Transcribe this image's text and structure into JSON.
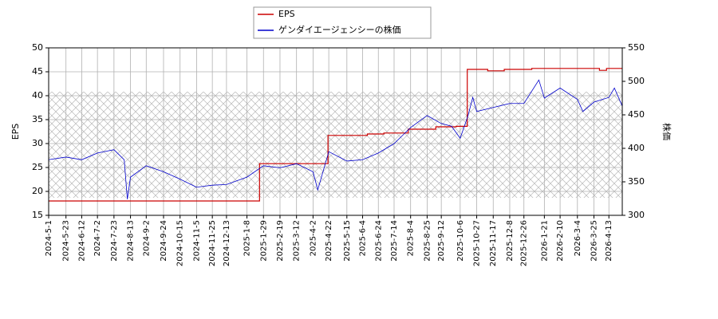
{
  "chart_data": {
    "type": "line",
    "drawstyle": {
      "EPS": "steps-post"
    },
    "ylabel": "EPS",
    "y2label": "株価",
    "xlim": [
      "2024-5-1",
      "2026-4-30"
    ],
    "xticks": [
      "2024-5-1",
      "2024-5-23",
      "2024-6-12",
      "2024-7-2",
      "2024-7-23",
      "2024-8-13",
      "2024-9-2",
      "2024-9-24",
      "2024-10-15",
      "2024-11-5",
      "2024-11-25",
      "2024-12-13",
      "2025-1-8",
      "2025-1-29",
      "2025-2-19",
      "2025-3-12",
      "2025-4-2",
      "2025-4-22",
      "2025-5-15",
      "2025-6-4",
      "2025-6-24",
      "2025-7-14",
      "2025-8-4",
      "2025-8-25",
      "2025-9-12",
      "2025-10-6",
      "2025-10-27",
      "2025-11-17",
      "2025-12-8",
      "2025-12-26",
      "2026-1-21",
      "2026-2-10",
      "2026-3-4",
      "2026-3-25",
      "2026-4-13"
    ],
    "ylim": [
      15,
      50
    ],
    "yticks": [
      15,
      20,
      25,
      30,
      35,
      40,
      45,
      50
    ],
    "y2lim": [
      300,
      550
    ],
    "y2ticks": [
      300,
      350,
      400,
      450,
      500,
      550
    ],
    "grid": true,
    "legend": "upper center",
    "series": [
      {
        "name": "EPS",
        "color": "#cc0000",
        "x": [
          "2024-5-1",
          "2025-1-24",
          "2025-4-21",
          "2025-6-10",
          "2025-7-1",
          "2025-8-1",
          "2025-9-5",
          "2025-10-1",
          "2025-10-15",
          "2025-11-10",
          "2025-12-1",
          "2026-1-5",
          "2026-4-1",
          "2026-4-10",
          "2026-4-30"
        ],
        "values": [
          18.0,
          25.8,
          31.7,
          32.0,
          32.2,
          33.0,
          33.5,
          33.6,
          45.5,
          45.2,
          45.5,
          45.7,
          45.3,
          45.7,
          45.7
        ]
      },
      {
        "name": "ゲンダイエージェンシーの株価",
        "color": "#0000cc",
        "axis": "y2",
        "x": [
          "2024-5-1",
          "2024-5-23",
          "2024-6-12",
          "2024-7-2",
          "2024-7-23",
          "2024-8-5",
          "2024-8-9",
          "2024-8-13",
          "2024-9-2",
          "2024-9-24",
          "2024-10-15",
          "2024-11-5",
          "2024-11-25",
          "2024-12-13",
          "2025-1-8",
          "2025-1-29",
          "2025-2-19",
          "2025-3-12",
          "2025-4-2",
          "2025-4-8",
          "2025-4-22",
          "2025-5-15",
          "2025-6-4",
          "2025-6-24",
          "2025-7-14",
          "2025-8-4",
          "2025-8-25",
          "2025-9-12",
          "2025-9-25",
          "2025-10-6",
          "2025-10-16",
          "2025-10-22",
          "2025-10-27",
          "2025-11-17",
          "2025-12-8",
          "2025-12-26",
          "2026-1-14",
          "2026-1-21",
          "2026-2-10",
          "2026-3-4",
          "2026-3-11",
          "2026-3-25",
          "2026-4-13",
          "2026-4-20",
          "2026-4-30"
        ],
        "values": [
          383,
          387,
          383,
          393,
          398,
          383,
          324,
          357,
          374,
          365,
          354,
          342,
          345,
          346,
          357,
          374,
          371,
          377,
          365,
          338,
          395,
          381,
          383,
          393,
          407,
          431,
          449,
          437,
          433,
          415,
          449,
          476,
          455,
          461,
          467,
          467,
          502,
          475,
          490,
          473,
          455,
          469,
          476,
          490,
          463
        ]
      }
    ]
  }
}
